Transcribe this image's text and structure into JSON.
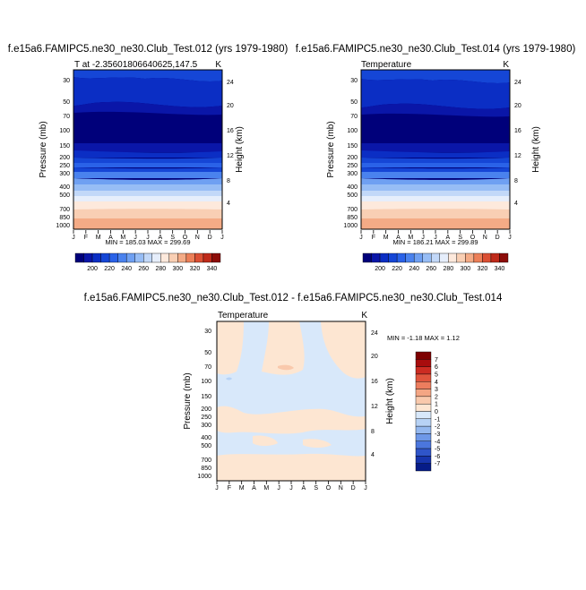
{
  "chart_data": [
    {
      "type": "heatmap",
      "title": "f.e15a6.FAMIPC5.ne30_ne30.Club_Test.012 (yrs 1979-1980)",
      "subtitle_left": "T at -2.35601806640625,147.5",
      "subtitle_right": "K",
      "ylabel": "Pressure (mb)",
      "ylabel_right": "Height (km)",
      "x_ticks": [
        "J",
        "F",
        "M",
        "A",
        "M",
        "J",
        "J",
        "A",
        "S",
        "O",
        "N",
        "D",
        "J"
      ],
      "y_ticks": [
        "30",
        "50",
        "70",
        "100",
        "150",
        "200",
        "250",
        "300",
        "400",
        "500",
        "700",
        "850",
        "1000"
      ],
      "height_ticks": [
        "24",
        "20",
        "16",
        "12",
        "8",
        "4"
      ],
      "minmax": "MIN = 185.03  MAX = 299.69",
      "colorbar_labels": [
        "200",
        "220",
        "240",
        "260",
        "280",
        "300",
        "320",
        "340"
      ]
    },
    {
      "type": "heatmap",
      "title": "f.e15a6.FAMIPC5.ne30_ne30.Club_Test.014 (yrs 1979-1980)",
      "subtitle_left": "Temperature",
      "subtitle_right": "K",
      "ylabel": "Pressure (mb)",
      "ylabel_right": "Height (km)",
      "x_ticks": [
        "J",
        "F",
        "M",
        "A",
        "M",
        "J",
        "J",
        "A",
        "S",
        "O",
        "N",
        "D",
        "J"
      ],
      "y_ticks": [
        "30",
        "50",
        "70",
        "100",
        "150",
        "200",
        "250",
        "300",
        "400",
        "500",
        "700",
        "850",
        "1000"
      ],
      "height_ticks": [
        "24",
        "20",
        "16",
        "12",
        "8",
        "4"
      ],
      "minmax": "MIN = 186.21  MAX = 299.89",
      "colorbar_labels": [
        "200",
        "220",
        "240",
        "260",
        "280",
        "300",
        "320",
        "340"
      ]
    },
    {
      "type": "heatmap",
      "title": "f.e15a6.FAMIPC5.ne30_ne30.Club_Test.012 - f.e15a6.FAMIPC5.ne30_ne30.Club_Test.014",
      "subtitle_left": "Temperature",
      "subtitle_right": "K",
      "ylabel": "Pressure (mb)",
      "ylabel_right": "Height (km)",
      "x_ticks": [
        "J",
        "F",
        "M",
        "A",
        "M",
        "J",
        "J",
        "A",
        "S",
        "O",
        "N",
        "D",
        "J"
      ],
      "y_ticks": [
        "30",
        "50",
        "70",
        "100",
        "150",
        "200",
        "250",
        "300",
        "400",
        "500",
        "700",
        "850",
        "1000"
      ],
      "height_ticks": [
        "24",
        "20",
        "16",
        "12",
        "8",
        "4"
      ],
      "minmax": "MIN =  -1.18 MAX =   1.12",
      "colorbar_labels": [
        "7",
        "6",
        "5",
        "4",
        "3",
        "2",
        "1",
        "0",
        "-1",
        "-2",
        "-3",
        "-4",
        "-5",
        "-6",
        "-7"
      ]
    }
  ],
  "colors": {
    "abs_scale": [
      "#00007a",
      "#0a16a8",
      "#0b2ec4",
      "#1546d6",
      "#2a62e8",
      "#4a82ee",
      "#6fa0f2",
      "#97bdf5",
      "#c2d8f8",
      "#e6eefb",
      "#fde9dc",
      "#f9cfb4",
      "#f4ab86",
      "#ec7f58",
      "#db4f33",
      "#bf2a1a",
      "#8c0d09"
    ],
    "diff_scale": [
      "#7d0000",
      "#a80d0d",
      "#cc2c22",
      "#e0553d",
      "#ec7d5e",
      "#f4a684",
      "#f9c9ac",
      "#fde6d2",
      "#d8e8fa",
      "#b7d2f5",
      "#94b8ef",
      "#6e98e8",
      "#4b76dd",
      "#2f55c9",
      "#1735ad",
      "#061c88"
    ],
    "diff_pos": "#fde6d2",
    "diff_neg": "#d8e8fa"
  }
}
